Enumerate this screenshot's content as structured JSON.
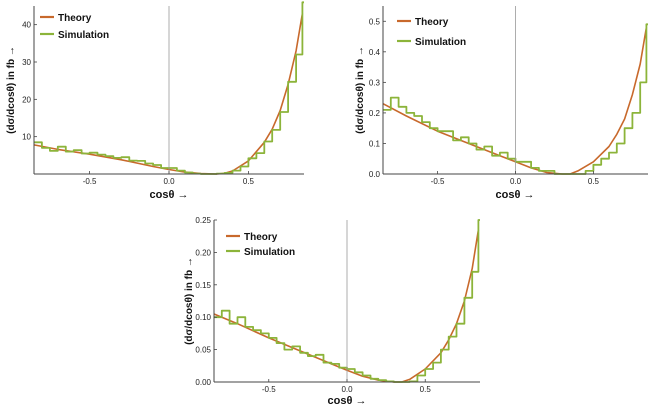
{
  "figure": {
    "colors": {
      "theory": "#c8692c",
      "simulation": "#8cb43a",
      "axis": "#444444",
      "zero_line": "#999999"
    }
  },
  "chart_data": [
    {
      "type": "line",
      "xlabel": "cosθ →",
      "ylabel": "(dσ/dcosθ) in fb →",
      "xlim": [
        -0.85,
        0.85
      ],
      "ylim": [
        0,
        45
      ],
      "xticks": [
        -0.5,
        0.0,
        0.5
      ],
      "yticks": [
        10,
        20,
        30,
        40
      ],
      "xtick_labels": [
        "-0.5",
        "0.0",
        "0.5"
      ],
      "ytick_labels": [
        "10",
        "20",
        "30",
        "40"
      ],
      "legend": {
        "placement": "top-left",
        "entries": [
          "Theory",
          "Simulation"
        ]
      },
      "grid": false,
      "series": [
        {
          "name": "Theory",
          "x": [
            -0.85,
            -0.7,
            -0.5,
            -0.3,
            -0.1,
            0.0,
            0.1,
            0.2,
            0.3,
            0.35,
            0.4,
            0.5,
            0.6,
            0.65,
            0.7,
            0.75,
            0.8,
            0.84
          ],
          "y": [
            7.8,
            6.6,
            5.3,
            3.8,
            2.0,
            1.2,
            0.5,
            0.1,
            0.0,
            0.2,
            0.8,
            3.5,
            8.5,
            12.0,
            17.0,
            24.0,
            33.0,
            43.0
          ]
        },
        {
          "name": "Simulation",
          "x": [
            -0.85,
            -0.8,
            -0.75,
            -0.7,
            -0.65,
            -0.6,
            -0.55,
            -0.5,
            -0.45,
            -0.4,
            -0.35,
            -0.3,
            -0.25,
            -0.2,
            -0.15,
            -0.1,
            -0.05,
            0.0,
            0.05,
            0.1,
            0.15,
            0.2,
            0.25,
            0.3,
            0.35,
            0.4,
            0.45,
            0.5,
            0.55,
            0.6,
            0.65,
            0.7,
            0.75,
            0.8,
            0.84
          ],
          "y": [
            8.5,
            7.0,
            6.2,
            7.3,
            6.0,
            6.4,
            5.5,
            5.7,
            5.2,
            4.8,
            4.3,
            4.5,
            3.6,
            3.5,
            2.8,
            2.4,
            1.6,
            1.6,
            0.9,
            0.4,
            0.1,
            0.0,
            0.0,
            0.1,
            0.3,
            0.9,
            2.0,
            4.2,
            5.6,
            8.7,
            11.8,
            16.6,
            24.7,
            32.0,
            46.0
          ]
        }
      ]
    },
    {
      "type": "line",
      "xlabel": "cosθ →",
      "ylabel": "(dσ/dcosθ) in fb →",
      "xlim": [
        -0.85,
        0.85
      ],
      "ylim": [
        0,
        0.55
      ],
      "xticks": [
        -0.5,
        0.0,
        0.5
      ],
      "yticks": [
        0.0,
        0.1,
        0.2,
        0.3,
        0.4,
        0.5
      ],
      "xtick_labels": [
        "-0.5",
        "0.0",
        "0.5"
      ],
      "ytick_labels": [
        "0.0",
        "0.1",
        "0.2",
        "0.3",
        "0.4",
        "0.5"
      ],
      "legend": {
        "placement": "top-left",
        "entries": [
          "Theory",
          "Simulation"
        ]
      },
      "grid": false,
      "series": [
        {
          "name": "Theory",
          "x": [
            -0.85,
            -0.7,
            -0.5,
            -0.3,
            -0.1,
            0.0,
            0.1,
            0.2,
            0.3,
            0.35,
            0.4,
            0.5,
            0.6,
            0.65,
            0.7,
            0.75,
            0.8,
            0.84
          ],
          "y": [
            0.23,
            0.19,
            0.14,
            0.1,
            0.06,
            0.04,
            0.02,
            0.005,
            0.0,
            0.0,
            0.01,
            0.04,
            0.09,
            0.13,
            0.18,
            0.26,
            0.36,
            0.48
          ]
        },
        {
          "name": "Simulation",
          "x": [
            -0.85,
            -0.8,
            -0.75,
            -0.7,
            -0.65,
            -0.6,
            -0.55,
            -0.5,
            -0.45,
            -0.4,
            -0.35,
            -0.3,
            -0.25,
            -0.2,
            -0.15,
            -0.1,
            -0.05,
            0.0,
            0.05,
            0.1,
            0.15,
            0.2,
            0.25,
            0.3,
            0.35,
            0.4,
            0.45,
            0.5,
            0.55,
            0.6,
            0.65,
            0.7,
            0.75,
            0.8,
            0.84
          ],
          "y": [
            0.21,
            0.25,
            0.22,
            0.2,
            0.19,
            0.17,
            0.15,
            0.14,
            0.14,
            0.11,
            0.12,
            0.1,
            0.08,
            0.09,
            0.06,
            0.07,
            0.05,
            0.04,
            0.04,
            0.02,
            0.01,
            0.01,
            0.0,
            0.0,
            0.0,
            0.0,
            0.01,
            0.03,
            0.05,
            0.07,
            0.1,
            0.15,
            0.2,
            0.3,
            0.49
          ]
        }
      ]
    },
    {
      "type": "line",
      "xlabel": "cosθ →",
      "ylabel": "(dσ/dcosθ) in fb →",
      "xlim": [
        -0.85,
        0.85
      ],
      "ylim": [
        0,
        0.25
      ],
      "xticks": [
        -0.5,
        0.0,
        0.5
      ],
      "yticks": [
        0.0,
        0.05,
        0.1,
        0.15,
        0.2,
        0.25
      ],
      "xtick_labels": [
        "-0.5",
        "0.0",
        "0.5"
      ],
      "ytick_labels": [
        "0.00",
        "0.05",
        "0.10",
        "0.15",
        "0.20",
        "0.25"
      ],
      "legend": {
        "placement": "top-left",
        "entries": [
          "Theory",
          "Simulation"
        ]
      },
      "grid": false,
      "series": [
        {
          "name": "Theory",
          "x": [
            -0.85,
            -0.7,
            -0.5,
            -0.3,
            -0.1,
            0.0,
            0.1,
            0.2,
            0.3,
            0.35,
            0.4,
            0.5,
            0.6,
            0.65,
            0.7,
            0.75,
            0.8,
            0.84
          ],
          "y": [
            0.105,
            0.09,
            0.068,
            0.048,
            0.028,
            0.018,
            0.009,
            0.003,
            0.0,
            0.0,
            0.004,
            0.02,
            0.045,
            0.065,
            0.09,
            0.125,
            0.175,
            0.235
          ]
        },
        {
          "name": "Simulation",
          "x": [
            -0.85,
            -0.8,
            -0.75,
            -0.7,
            -0.65,
            -0.6,
            -0.55,
            -0.5,
            -0.45,
            -0.4,
            -0.35,
            -0.3,
            -0.25,
            -0.2,
            -0.15,
            -0.1,
            -0.05,
            0.0,
            0.05,
            0.1,
            0.15,
            0.2,
            0.25,
            0.3,
            0.35,
            0.4,
            0.45,
            0.5,
            0.55,
            0.6,
            0.65,
            0.7,
            0.75,
            0.8,
            0.84
          ],
          "y": [
            0.1,
            0.11,
            0.09,
            0.1,
            0.085,
            0.08,
            0.075,
            0.068,
            0.06,
            0.05,
            0.055,
            0.045,
            0.04,
            0.042,
            0.03,
            0.028,
            0.022,
            0.02,
            0.015,
            0.01,
            0.005,
            0.003,
            0.001,
            0.0,
            0.0,
            0.001,
            0.01,
            0.02,
            0.03,
            0.05,
            0.07,
            0.09,
            0.13,
            0.17,
            0.25
          ]
        }
      ]
    }
  ]
}
